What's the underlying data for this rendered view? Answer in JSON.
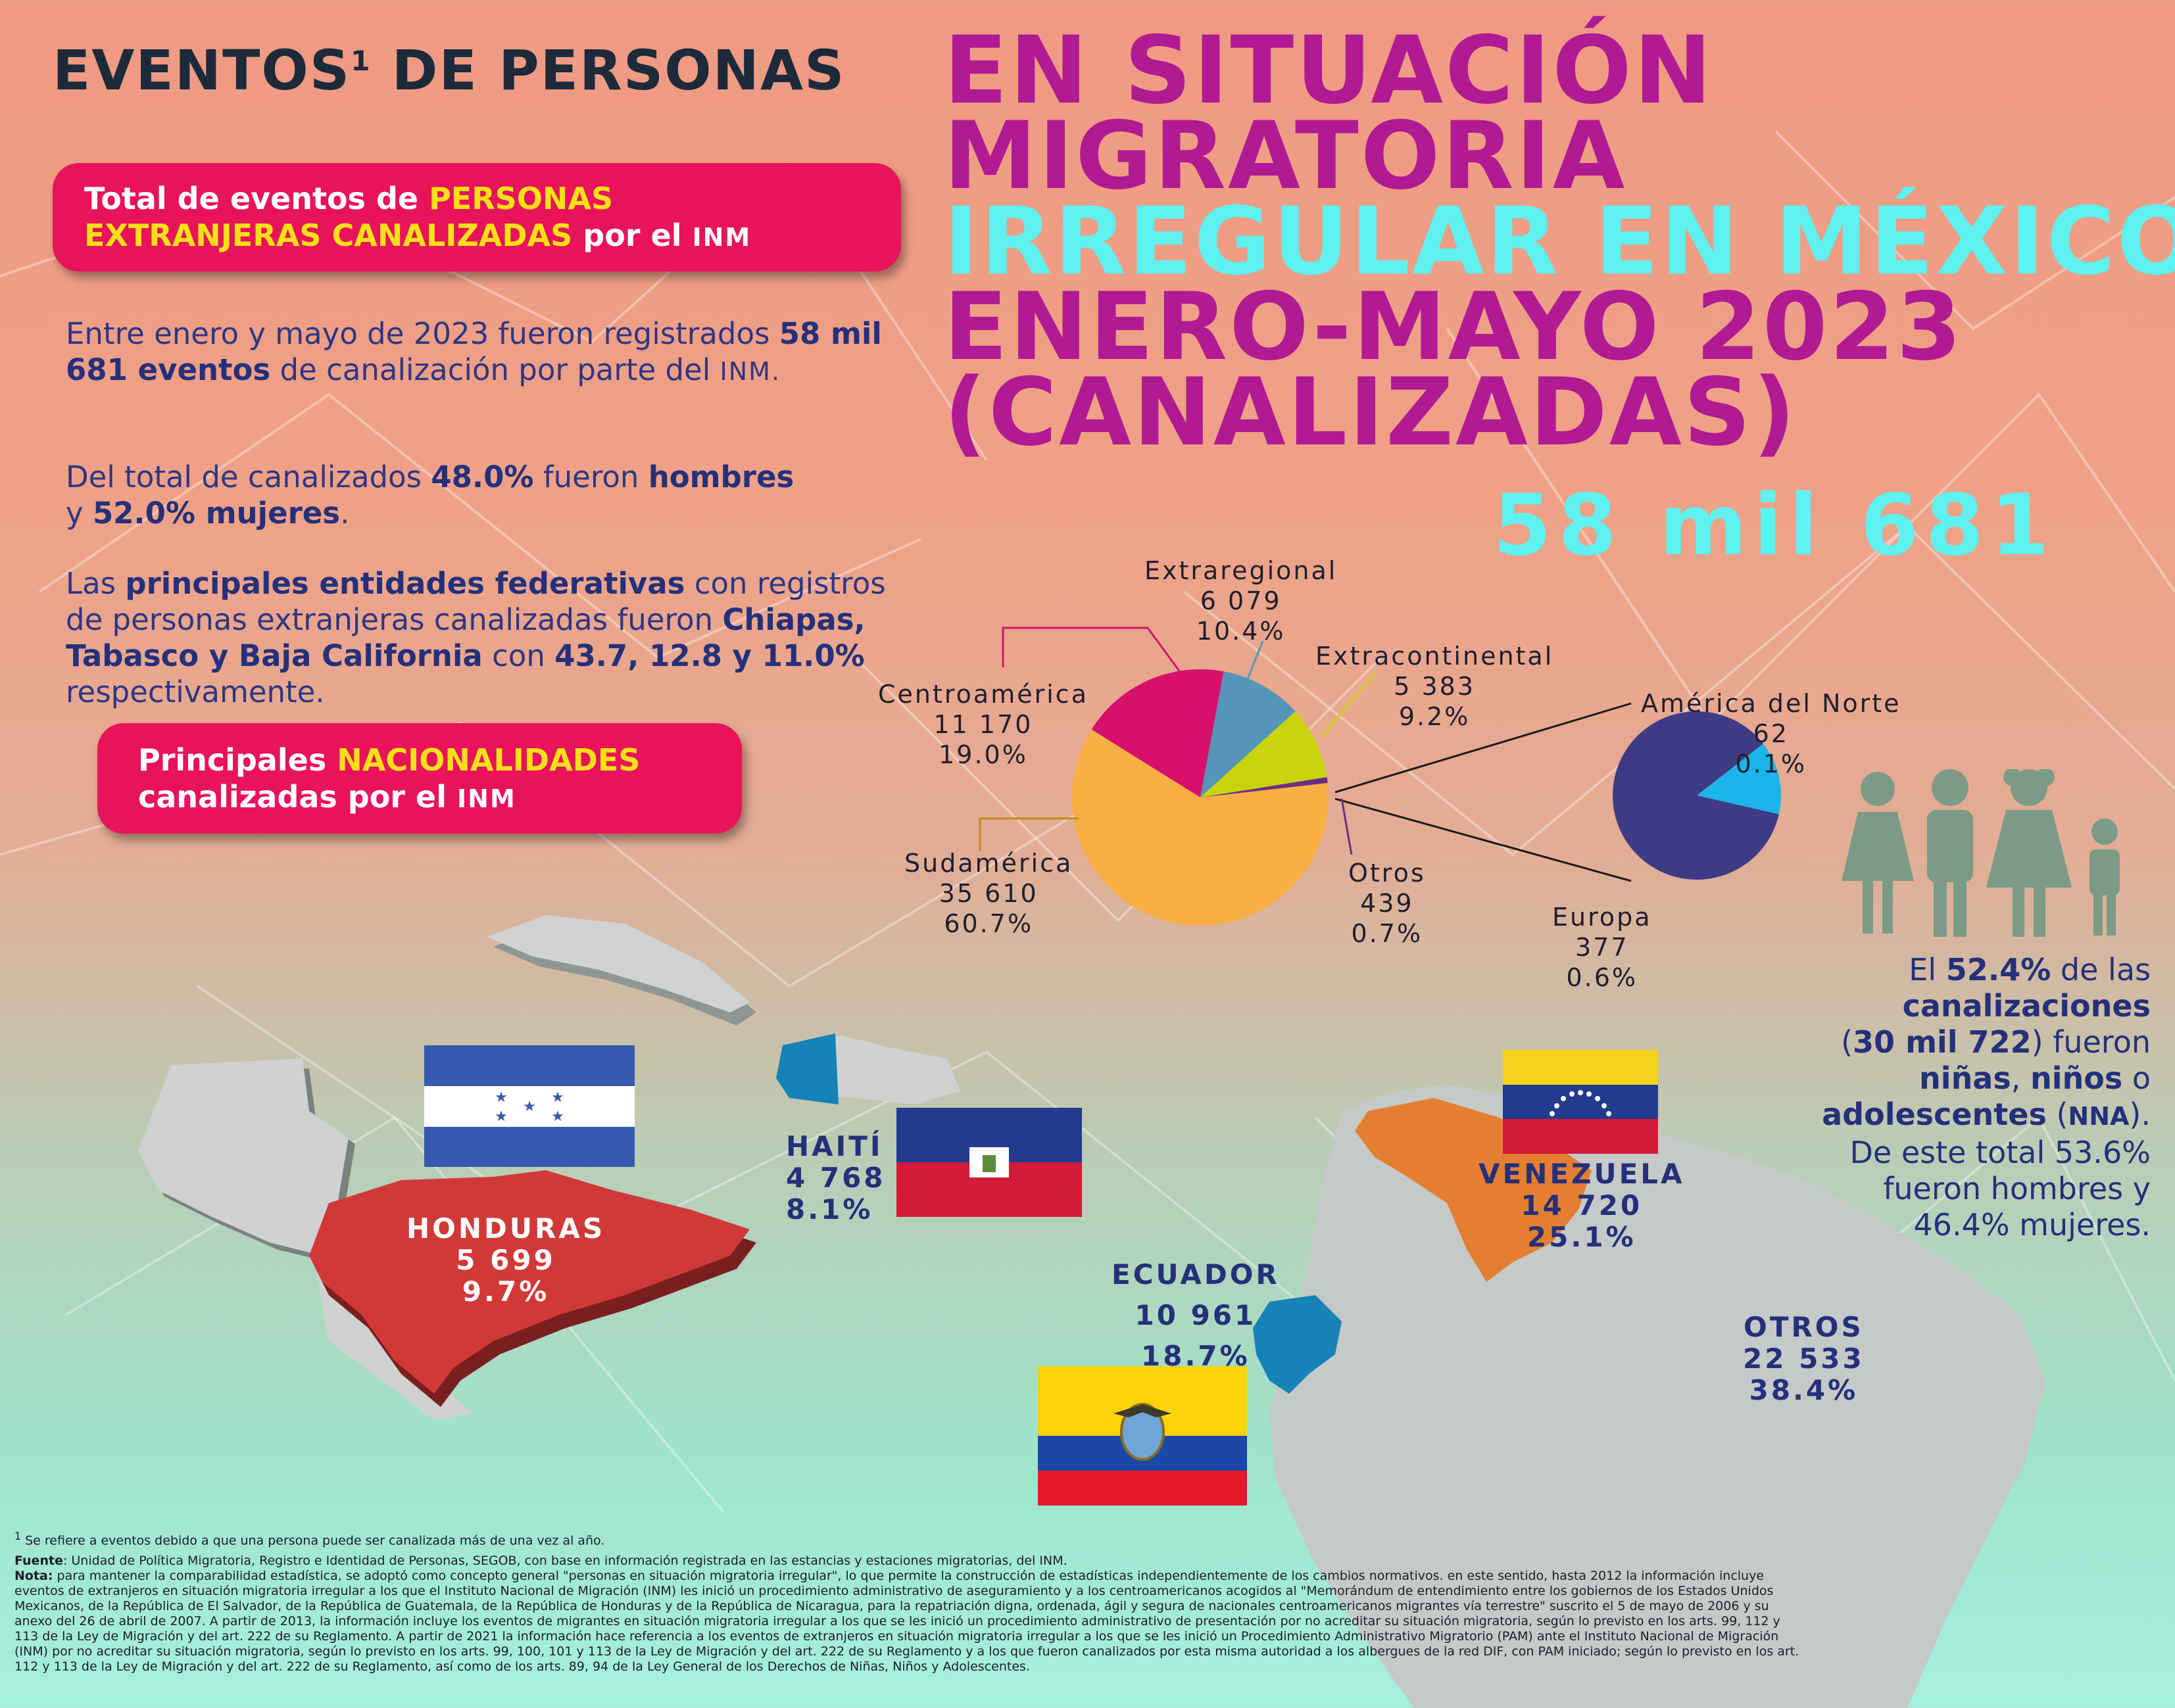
{
  "header": {
    "dark_title_part1": "EVENTOS",
    "dark_title_sup": "1",
    "dark_title_part2": " DE PERSONAS",
    "title_line1": "EN SITUACIÓN",
    "title_line2": "MIGRATORIA",
    "title_line3": "IRREGULAR EN MÉXICO",
    "title_line4": "ENERO-MAYO 2023",
    "title_line5": "(CANALIZADAS)",
    "total": "58 mil 681"
  },
  "pill_total": {
    "part1": "Total de eventos de ",
    "part2": "PERSONAS",
    "part3": "EXTRANJERAS CANALIZADAS",
    "part4": " por el ",
    "part5": "INM"
  },
  "paragraphs": {
    "p1_a": "Entre enero y mayo de 2023 fueron registrados ",
    "p1_b": "58 mil 681 eventos",
    "p1_c": " de canalización por parte del ",
    "p1_d": "INM.",
    "p2_a": "Del total de canalizados ",
    "p2_b": "48.0%",
    "p2_c": " fueron ",
    "p2_d": "hombres",
    "p2_e": " y ",
    "p2_f": "52.0% mujeres",
    "p2_g": ".",
    "p3_a": "Las ",
    "p3_b": "principales entidades federativas",
    "p3_c": " con registros de personas extranjeras canalizadas fueron ",
    "p3_d": "Chiapas, Tabasco y Baja California",
    "p3_e": " con ",
    "p3_f": "43.7, 12.8 y 11.0%",
    "p3_g": " respectivamente."
  },
  "pill_nat": {
    "part1": "Principales ",
    "part2": "NACIONALIDADES",
    "part3": "canalizadas por el ",
    "part4": "INM"
  },
  "chart_data": {
    "type": "pie",
    "slices": [
      {
        "name": "Centroamérica",
        "value": 11170,
        "value_label": "11 170",
        "pct": "19.0%",
        "color": "#d5116c"
      },
      {
        "name": "Extraregional",
        "value": 6079,
        "value_label": "6 079",
        "pct": "10.4%",
        "color": "#5596b8"
      },
      {
        "name": "Extracontinental",
        "value": 5383,
        "value_label": "5 383",
        "pct": "9.2%",
        "color": "#c9d40c"
      },
      {
        "name": "Otros",
        "value": 439,
        "value_label": "439",
        "pct": "0.7%",
        "color": "#6b2e86"
      },
      {
        "name": "Sudamérica",
        "value": 35610,
        "value_label": "35 610",
        "pct": "60.7%",
        "color": "#f6ae45"
      }
    ],
    "sub_pie": [
      {
        "name": "América del Norte",
        "value": 62,
        "value_label": "62",
        "pct": "0.1%",
        "color": "#1bb4e8"
      },
      {
        "name": "Europa",
        "value": 377,
        "value_label": "377",
        "pct": "0.6%",
        "color": "#3e3a84"
      }
    ]
  },
  "countries": {
    "honduras": {
      "name": "HONDURAS",
      "value": "5 699",
      "pct": "9.7%"
    },
    "haiti": {
      "name": "HAITÍ",
      "value": "4 768",
      "pct": "8.1%"
    },
    "venezuela": {
      "name": "VENEZUELA",
      "value": "14 720",
      "pct": "25.1%"
    },
    "ecuador": {
      "name": "ECUADOR",
      "value": "10 961",
      "pct": "18.7%"
    },
    "otros": {
      "name": "OTROS",
      "value": "22 533",
      "pct": "38.4%"
    }
  },
  "nna": {
    "a": "El ",
    "b": "52.4%",
    "c": " de las ",
    "d": "canalizaciones",
    "e": "(",
    "f": "30 mil 722",
    "g": ") fueron ",
    "h": "niñas",
    "i": ", ",
    "j": "niños",
    "k": " o ",
    "l": "adolescentes",
    "m": " (",
    "n": "NNA",
    "o": ").",
    "p": "De este total 53.6% fueron hombres y 46.4% mujeres."
  },
  "footer": {
    "note_sup": "1",
    "note": " Se refiere a eventos debido a que una persona puede ser canalizada más de una vez al año.",
    "fuente_label": "Fuente",
    "fuente": ": Unidad de Política Migratoria, Registro e Identidad de Personas, SEGOB, con base en información registrada en las estancias y estaciones migratorias, del INM.",
    "nota_label": "Nota:",
    "nota": " para mantener la comparabilidad estadística, se adoptó como concepto general \"personas en situación migratoria irregular\", lo que permite la construcción de estadísticas independientemente de los cambios normativos. en este sentido, hasta 2012 la información incluye eventos de extranjeros en situación migratoria irregular a los que el Instituto Nacional de Migración (INM) les inició un procedimiento administrativo de aseguramiento y a los centroamericanos acogidos al \"Memorándum de entendimiento entre los gobiernos de los Estados Unidos Mexicanos, de la República de El Salvador, de la República de Guatemala, de la República de Honduras y de la República de Nicaragua, para la repatriación digna, ordenada, ágil y segura de nacionales centroamericanos migrantes vía terrestre\" suscrito el 5 de mayo de 2006 y su anexo del 26 de abril de 2007. A partir de 2013, la información incluye los eventos de migrantes en situación migratoria irregular a los que se les inició un procedimiento administrativo de presentación por no acreditar su situación migratoria, según lo previsto en los arts. 99, 112 y 113 de la Ley de Migración y del art. 222 de su Reglamento. A partir de 2021 la información hace referencia a los eventos de extranjeros en situación migratoria irregular a los que se les inició un Procedimiento Administrativo Migratorio (PAM) ante el Instituto Nacional de Migración (INM) por no acreditar su situación migratoria, según lo previsto en los arts. 99, 100, 101 y 113 de la Ley de Migración y del art. 222 de su Reglamento y a los que fueron canalizados por esta misma autoridad a los albergues de la red DIF, con PAM iniciado; según lo previsto en los art. 112 y 113 de la Ley de Migración y del art. 222 de su Reglamento, así como de los arts. 89, 94 de la Ley General de los Derechos de Niñas, Niños y Adolescentes."
  },
  "colors": {
    "magenta": "#b01a93",
    "cyan": "#5ef1ef",
    "navy": "#24307a",
    "pill": "#e8135a",
    "yellow": "#f7e018"
  }
}
